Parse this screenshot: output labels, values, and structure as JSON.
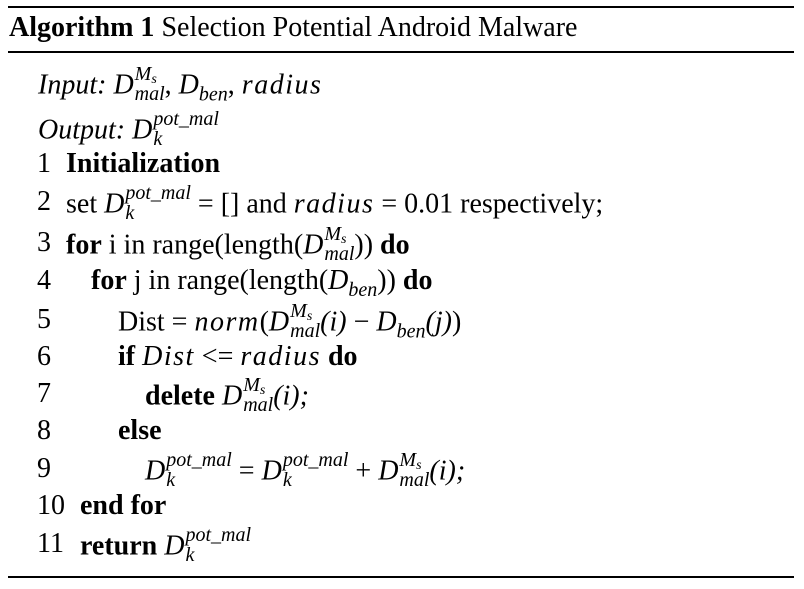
{
  "title": {
    "label": "Algorithm 1",
    "name": "Selection Potential Android Malware"
  },
  "header": {
    "input_label": "Input:",
    "input_sep1": ",",
    "input_sep2": ",",
    "input_radius": "radius",
    "output_label": "Output:"
  },
  "symbols": {
    "D": "D",
    "Ms_base": "M",
    "Ms_sub": "s",
    "mal": "mal",
    "ben": "ben",
    "pot_mal": "pot_mal",
    "k": "k"
  },
  "lines": [
    {
      "num": "1",
      "kw": "Initialization"
    },
    {
      "num": "2",
      "pre": "set",
      "mid": "= [] and",
      "var": "radius",
      "post": "= 0.01 respectively;"
    },
    {
      "num": "3",
      "kw": "for",
      "pre": "i in range(length(",
      "post": "))",
      "kw2": "do"
    },
    {
      "num": "4",
      "kw": "for",
      "pre": "j in range(length(",
      "post": "))",
      "kw2": "do"
    },
    {
      "num": "5",
      "pre": "Dist =",
      "fn": "norm",
      "open": "(",
      "arg_i": "(i)",
      "minus": "−",
      "arg_j": "(j)",
      "close": ")"
    },
    {
      "num": "6",
      "kw": "if",
      "var1": "Dist",
      "op": "<=",
      "var2": "radius",
      "kw2": "do"
    },
    {
      "num": "7",
      "kw": "delete",
      "arg": "(i);"
    },
    {
      "num": "8",
      "kw": "else"
    },
    {
      "num": "9",
      "eq": "=",
      "plus": "+",
      "arg": "(i);"
    },
    {
      "num": "10",
      "kw": "end for"
    },
    {
      "num": "11",
      "kw": "return"
    }
  ]
}
